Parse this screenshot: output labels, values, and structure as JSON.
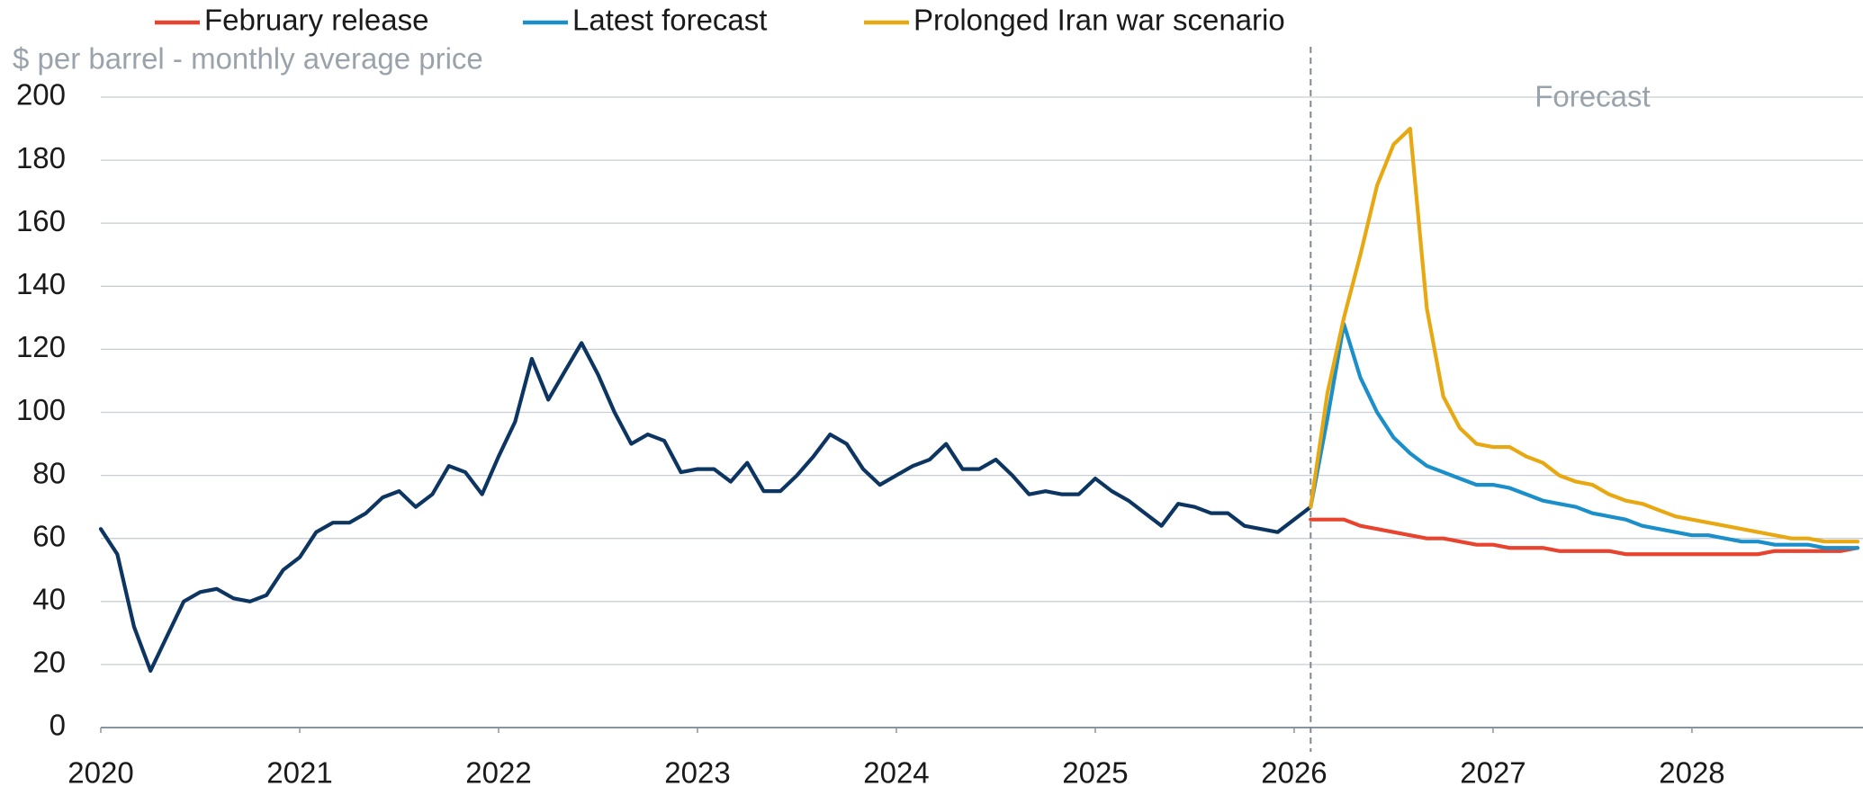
{
  "chart_data": {
    "type": "line",
    "ylabel": "$ per barrel - monthly average price",
    "annotations": [
      {
        "text": "Forecast",
        "x": 2027.5,
        "y": 200
      }
    ],
    "forecast_line_x": 2026.083,
    "x": [
      2020,
      2020.083,
      2020.167,
      2020.25,
      2020.333,
      2020.417,
      2020.5,
      2020.583,
      2020.667,
      2020.75,
      2020.833,
      2020.917,
      2021,
      2021.083,
      2021.167,
      2021.25,
      2021.333,
      2021.417,
      2021.5,
      2021.583,
      2021.667,
      2021.75,
      2021.833,
      2021.917,
      2022,
      2022.083,
      2022.167,
      2022.25,
      2022.333,
      2022.417,
      2022.5,
      2022.583,
      2022.667,
      2022.75,
      2022.833,
      2022.917,
      2023,
      2023.083,
      2023.167,
      2023.25,
      2023.333,
      2023.417,
      2023.5,
      2023.583,
      2023.667,
      2023.75,
      2023.833,
      2023.917,
      2024,
      2024.083,
      2024.167,
      2024.25,
      2024.333,
      2024.417,
      2024.5,
      2024.583,
      2024.667,
      2024.75,
      2024.833,
      2024.917,
      2025,
      2025.083,
      2025.167,
      2025.25,
      2025.333,
      2025.417,
      2025.5,
      2025.583,
      2025.667,
      2025.75,
      2025.833,
      2025.917,
      2026,
      2026.083,
      2026.167,
      2026.25,
      2026.333,
      2026.417,
      2026.5,
      2026.583,
      2026.667,
      2026.75,
      2026.833,
      2026.917,
      2027,
      2027.083,
      2027.167,
      2027.25,
      2027.333,
      2027.417,
      2027.5,
      2027.583,
      2027.667,
      2027.75,
      2027.833,
      2027.917,
      2028,
      2028.083,
      2028.167,
      2028.25,
      2028.333,
      2028.417,
      2028.5,
      2028.583,
      2028.667,
      2028.75,
      2028.833
    ],
    "series": [
      {
        "color": "#0d3561",
        "values": [
          63,
          55,
          32,
          18,
          29,
          40,
          43,
          44,
          41,
          40,
          42,
          50,
          54,
          62,
          65,
          65,
          68,
          73,
          75,
          70,
          74,
          83,
          81,
          74,
          86,
          97,
          117,
          104,
          113,
          122,
          112,
          100,
          90,
          93,
          91,
          81,
          82,
          82,
          78,
          84,
          75,
          75,
          80,
          86,
          93,
          90,
          82,
          77,
          80,
          83,
          85,
          90,
          82,
          82,
          85,
          80,
          74,
          75,
          74,
          74,
          79,
          75,
          72,
          68,
          64,
          71,
          70,
          68,
          68,
          64,
          63,
          62,
          66,
          70,
          null,
          null,
          null,
          null,
          null,
          null,
          null,
          null,
          null,
          null,
          null,
          null,
          null,
          null,
          null,
          null,
          null,
          null,
          null,
          null,
          null,
          null,
          null,
          null,
          null,
          null,
          null,
          null,
          null,
          null,
          null,
          null,
          null
        ]
      },
      {
        "name": "February release",
        "color": "#e8432e",
        "values": [
          null,
          null,
          null,
          null,
          null,
          null,
          null,
          null,
          null,
          null,
          null,
          null,
          null,
          null,
          null,
          null,
          null,
          null,
          null,
          null,
          null,
          null,
          null,
          null,
          null,
          null,
          null,
          null,
          null,
          null,
          null,
          null,
          null,
          null,
          null,
          null,
          null,
          null,
          null,
          null,
          null,
          null,
          null,
          null,
          null,
          null,
          null,
          null,
          null,
          null,
          null,
          null,
          null,
          null,
          null,
          null,
          null,
          null,
          null,
          null,
          null,
          null,
          null,
          null,
          null,
          null,
          null,
          null,
          null,
          null,
          null,
          null,
          null,
          66,
          66,
          66,
          64,
          63,
          62,
          61,
          60,
          60,
          59,
          58,
          58,
          57,
          57,
          57,
          56,
          56,
          56,
          56,
          55,
          55,
          55,
          55,
          55,
          55,
          55,
          55,
          55,
          56,
          56,
          56,
          56,
          56,
          57
        ]
      },
      {
        "name": "Latest forecast",
        "color": "#1a8fc9",
        "values": [
          null,
          null,
          null,
          null,
          null,
          null,
          null,
          null,
          null,
          null,
          null,
          null,
          null,
          null,
          null,
          null,
          null,
          null,
          null,
          null,
          null,
          null,
          null,
          null,
          null,
          null,
          null,
          null,
          null,
          null,
          null,
          null,
          null,
          null,
          null,
          null,
          null,
          null,
          null,
          null,
          null,
          null,
          null,
          null,
          null,
          null,
          null,
          null,
          null,
          null,
          null,
          null,
          null,
          null,
          null,
          null,
          null,
          null,
          null,
          null,
          null,
          null,
          null,
          null,
          null,
          null,
          null,
          null,
          null,
          null,
          null,
          null,
          null,
          70,
          98,
          128,
          111,
          100,
          92,
          87,
          83,
          81,
          79,
          77,
          77,
          76,
          74,
          72,
          71,
          70,
          68,
          67,
          66,
          64,
          63,
          62,
          61,
          61,
          60,
          59,
          59,
          58,
          58,
          58,
          57,
          57,
          57
        ]
      },
      {
        "name": "Prolonged Iran war scenario",
        "color": "#e8a812",
        "values": [
          null,
          null,
          null,
          null,
          null,
          null,
          null,
          null,
          null,
          null,
          null,
          null,
          null,
          null,
          null,
          null,
          null,
          null,
          null,
          null,
          null,
          null,
          null,
          null,
          null,
          null,
          null,
          null,
          null,
          null,
          null,
          null,
          null,
          null,
          null,
          null,
          null,
          null,
          null,
          null,
          null,
          null,
          null,
          null,
          null,
          null,
          null,
          null,
          null,
          null,
          null,
          null,
          null,
          null,
          null,
          null,
          null,
          null,
          null,
          null,
          null,
          null,
          null,
          null,
          null,
          null,
          null,
          null,
          null,
          null,
          null,
          null,
          null,
          70,
          106,
          130,
          150,
          172,
          185,
          190,
          133,
          105,
          95,
          90,
          89,
          89,
          86,
          84,
          80,
          78,
          77,
          74,
          72,
          71,
          69,
          67,
          66,
          65,
          64,
          63,
          62,
          61,
          60,
          60,
          59,
          59,
          59
        ]
      }
    ],
    "xlim": [
      2020,
      2028.86
    ],
    "xticks": [
      2020,
      2021,
      2022,
      2023,
      2024,
      2025,
      2026,
      2027,
      2028
    ],
    "ylim": [
      0,
      200
    ],
    "yticks": [
      0,
      20,
      40,
      60,
      80,
      100,
      120,
      140,
      160,
      180,
      200
    ],
    "grid": true,
    "legend": "top"
  }
}
